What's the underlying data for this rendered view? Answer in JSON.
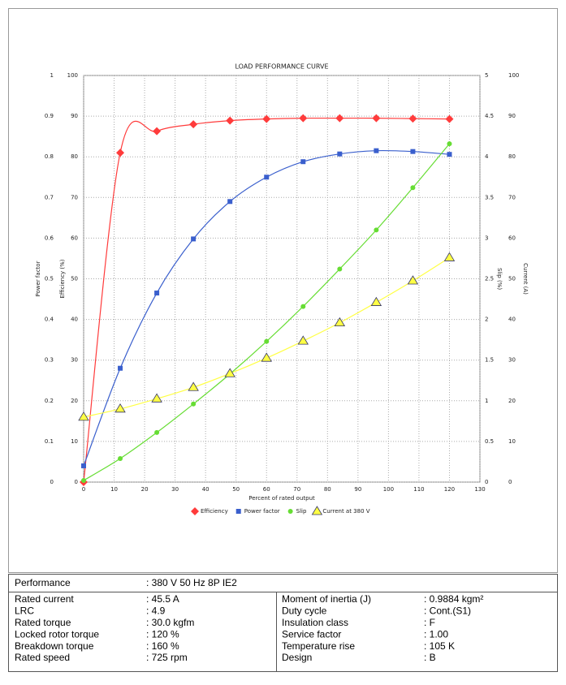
{
  "chart_data": {
    "type": "line",
    "title": "LOAD PERFORMANCE CURVE",
    "x_label": "Percent of rated output",
    "xlim": [
      0,
      130
    ],
    "xticks": [
      0,
      10,
      20,
      30,
      40,
      50,
      60,
      70,
      80,
      90,
      100,
      110,
      120,
      130
    ],
    "grid": true,
    "x": [
      0,
      12,
      24,
      36,
      48,
      60,
      72,
      84,
      96,
      108,
      120
    ],
    "y_axes": [
      {
        "label": "Power factor",
        "side": "left",
        "lim": [
          0,
          1
        ],
        "ticks": [
          0,
          0.1,
          0.2,
          0.3,
          0.4,
          0.5,
          0.6,
          0.7,
          0.8,
          0.9,
          1
        ]
      },
      {
        "label": "Efficiency (%)",
        "side": "left",
        "lim": [
          0,
          100
        ],
        "ticks": [
          0,
          10,
          20,
          30,
          40,
          50,
          60,
          70,
          80,
          90,
          100
        ]
      },
      {
        "label": "Slip (%)",
        "side": "right",
        "lim": [
          0,
          5
        ],
        "ticks": [
          0,
          0.5,
          1,
          1.5,
          2,
          2.5,
          3,
          3.5,
          4,
          4.5,
          5
        ]
      },
      {
        "label": "Current (A)",
        "side": "right",
        "lim": [
          0,
          100
        ],
        "ticks": [
          0,
          10,
          20,
          30,
          40,
          50,
          60,
          70,
          80,
          90,
          100
        ]
      }
    ],
    "series": [
      {
        "name": "Efficiency",
        "axis": 1,
        "color": "#ff3b3b",
        "marker": "diamond",
        "values": [
          0,
          81,
          86.3,
          88,
          88.9,
          89.3,
          89.5,
          89.5,
          89.5,
          89.4,
          89.3
        ]
      },
      {
        "name": "Power factor",
        "axis": 0,
        "color": "#3a5fcd",
        "marker": "square",
        "values": [
          0.04,
          0.28,
          0.465,
          0.598,
          0.69,
          0.75,
          0.788,
          0.807,
          0.815,
          0.813,
          0.806
        ]
      },
      {
        "name": "Slip",
        "axis": 2,
        "color": "#66dd33",
        "marker": "circle",
        "values": [
          0.02,
          0.29,
          0.61,
          0.96,
          1.33,
          1.73,
          2.16,
          2.62,
          3.1,
          3.62,
          4.16
        ]
      },
      {
        "name": "Current at 380 V",
        "axis": 3,
        "color": "#ffff44",
        "marker": "triangle",
        "values": [
          16,
          18,
          20.5,
          23.3,
          26.7,
          30.5,
          34.7,
          39.2,
          44.2,
          49.5,
          55.2
        ]
      }
    ]
  },
  "table": {
    "header": {
      "label": "Performance",
      "value": ": 380 V 50 Hz 8P IE2"
    },
    "left": [
      [
        "Rated current",
        ": 45.5 A"
      ],
      [
        "LRC",
        ": 4.9"
      ],
      [
        "Rated torque",
        ": 30.0 kgfm"
      ],
      [
        "Locked rotor torque",
        ": 120 %"
      ],
      [
        "Breakdown torque",
        ": 160 %"
      ],
      [
        "Rated speed",
        ": 725 rpm"
      ]
    ],
    "right": [
      [
        "Moment of inertia (J)",
        ": 0.9884 kgm²"
      ],
      [
        "Duty cycle",
        ": Cont.(S1)"
      ],
      [
        "Insulation class",
        ": F"
      ],
      [
        "Service factor",
        ": 1.00"
      ],
      [
        "Temperature rise",
        ": 105 K"
      ],
      [
        "Design",
        ": B"
      ]
    ]
  }
}
